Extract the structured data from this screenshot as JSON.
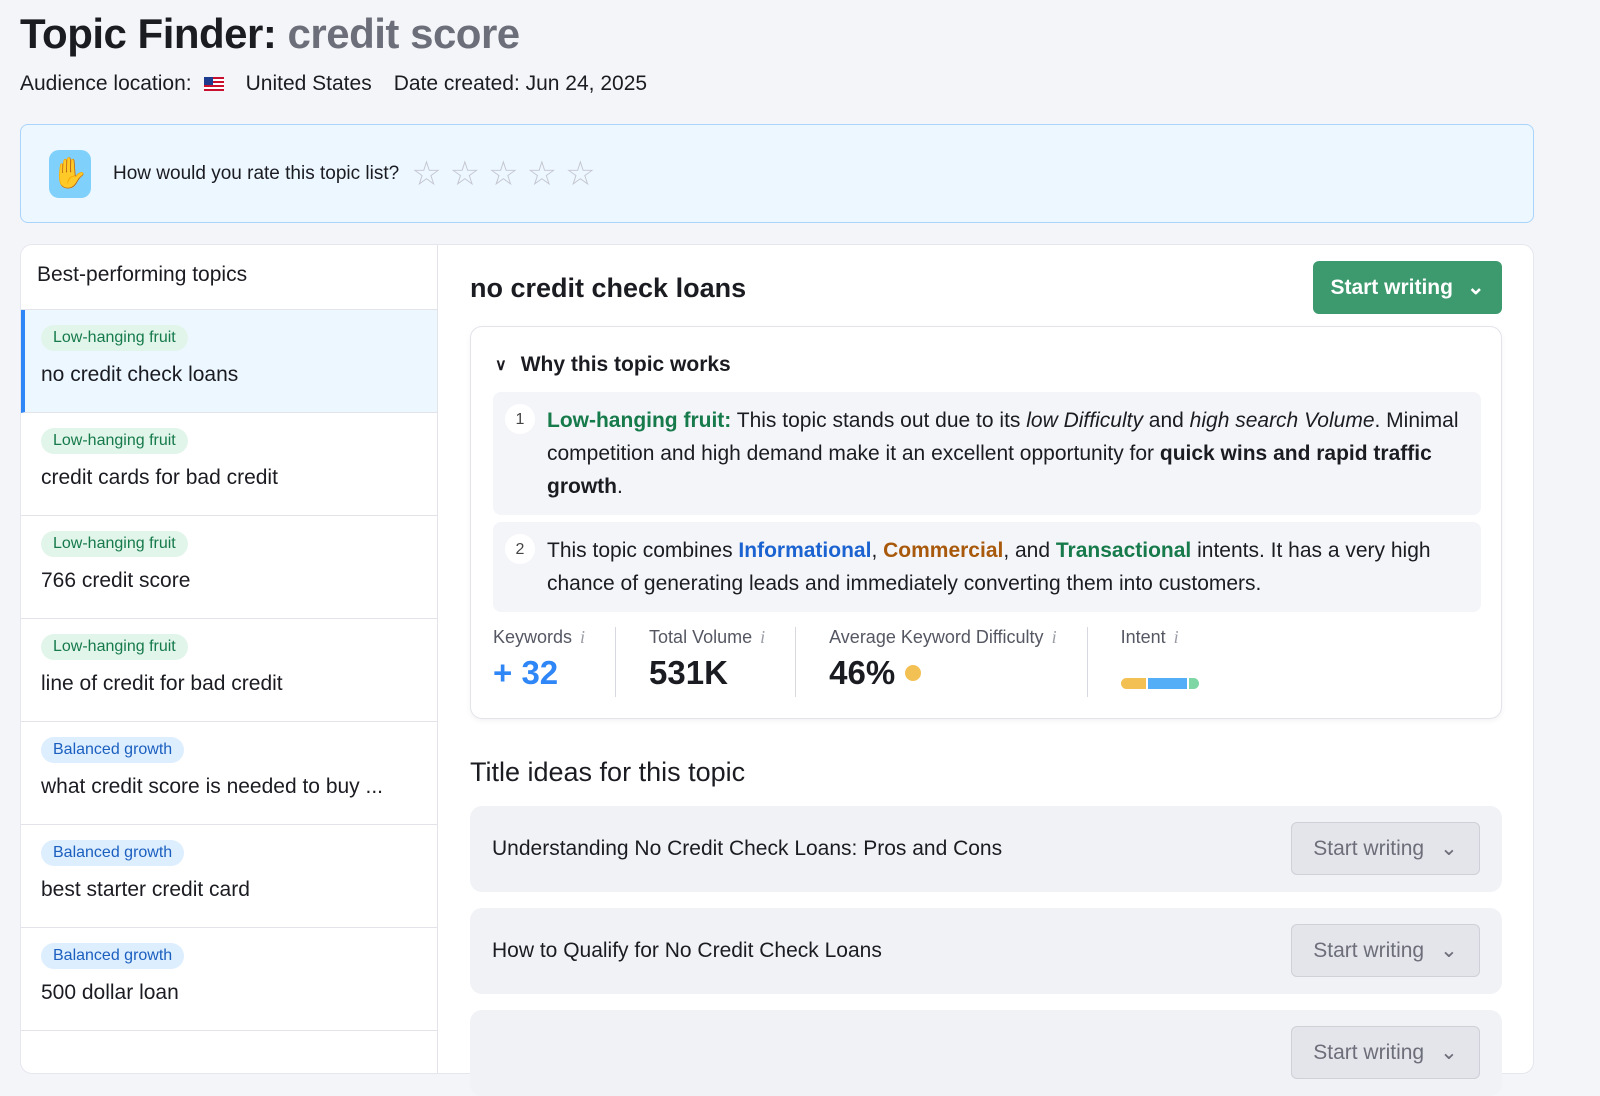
{
  "header": {
    "title": "Topic Finder:",
    "query": "credit score",
    "location_label": "Audience location:",
    "location": "United States",
    "date_label": "Date created: Jun 24, 2025"
  },
  "rating": {
    "question": "How would you rate this topic list?",
    "stars": 5,
    "value": 0
  },
  "sidebar": {
    "title": "Best-performing topics",
    "items": [
      {
        "badge": "Low-hanging fruit",
        "type": "green",
        "label": "no credit check loans",
        "selected": true
      },
      {
        "badge": "Low-hanging fruit",
        "type": "green",
        "label": "credit cards for bad credit"
      },
      {
        "badge": "Low-hanging fruit",
        "type": "green",
        "label": "766 credit score"
      },
      {
        "badge": "Low-hanging fruit",
        "type": "green",
        "label": "line of credit for bad credit"
      },
      {
        "badge": "Balanced growth",
        "type": "blue",
        "label": "what credit score is needed to buy ..."
      },
      {
        "badge": "Balanced growth",
        "type": "blue",
        "label": "best starter credit card"
      },
      {
        "badge": "Balanced growth",
        "type": "blue",
        "label": "500 dollar loan"
      }
    ]
  },
  "topic": {
    "title": "no credit check loans",
    "start_writing": "Start writing",
    "why": {
      "title": "Why this topic works",
      "r1": {
        "n": "1",
        "lead": "Low-hanging fruit:",
        "a": " This topic stands out due to its ",
        "b": "low Difficulty",
        "c": " and ",
        "d": "high search Volume",
        "e": ". Minimal competition and high demand make it an excellent opportunity for ",
        "f": "quick wins and rapid traffic growth",
        "g": "."
      },
      "r2": {
        "n": "2",
        "a": "This topic combines ",
        "i1": "Informational",
        "s1": ", ",
        "i2": "Commercial",
        "s2": ", and ",
        "i3": "Transactional",
        "b": " intents. It has a very high chance of generating leads and immediately converting them into customers."
      }
    },
    "stats": {
      "keywords_label": "Keywords",
      "keywords": "+ 32",
      "volume_label": "Total Volume",
      "volume": "531K",
      "kd_label": "Average Keyword Difficulty",
      "kd": "46%",
      "intent_label": "Intent",
      "intent_shares": {
        "commercial": 35,
        "informational": 52,
        "transactional": 13
      }
    },
    "ideas_title": "Title ideas for this topic",
    "ideas": [
      "Understanding No Credit Check Loans: Pros and Cons",
      "How to Qualify for No Credit Check Loans",
      ""
    ]
  },
  "colors": {
    "accent": "#3d9a6e",
    "selected": "#2f86f6",
    "kd_dot": "#f3c054",
    "commercial": "#f3c054",
    "informational": "#53aef7",
    "transactional": "#7dd6a3"
  }
}
